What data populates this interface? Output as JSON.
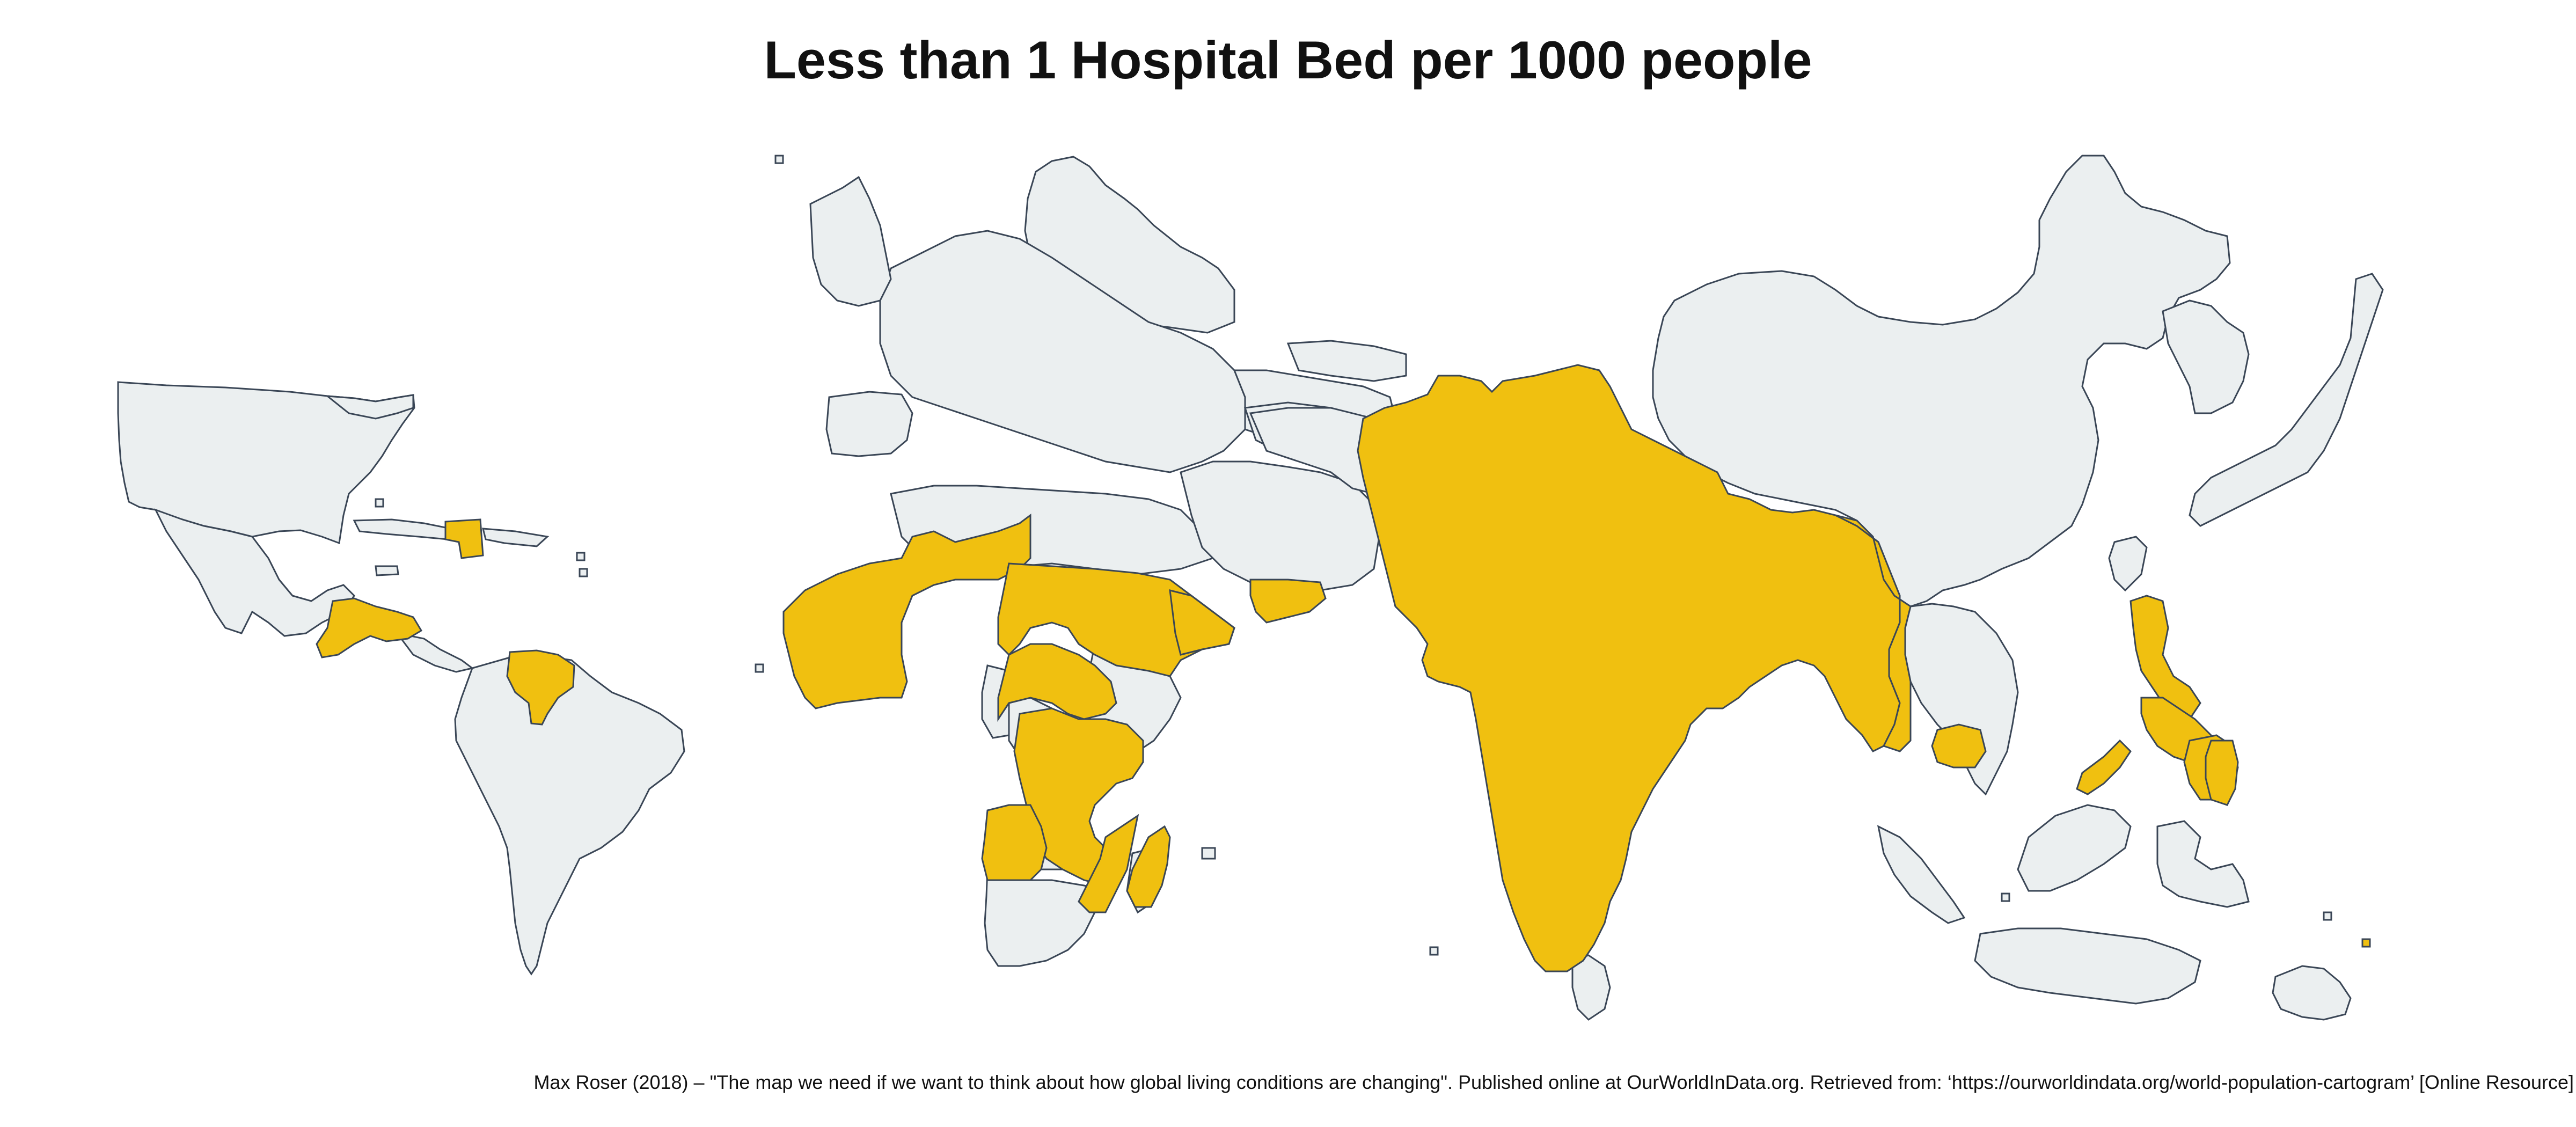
{
  "title": "Less than 1 Hospital Bed per 1000 people",
  "source": "Max Roser (2018) – \"The map we need if we want to think about how global living conditions are changing\". Published online at OurWorldInData.org. Retrieved from: ‘https://ourworldindata.org/world-population-cartogram’ [Online Resource]",
  "colors": {
    "highlight": "#f0c010",
    "other": "#ebeff0",
    "border": "#3a4656",
    "background": "#ffffff"
  },
  "map": {
    "type": "population-cartogram",
    "highlighted_category": "less-than-1-bed-per-1000",
    "other_category": "1-or-more-beds-per-1000"
  }
}
